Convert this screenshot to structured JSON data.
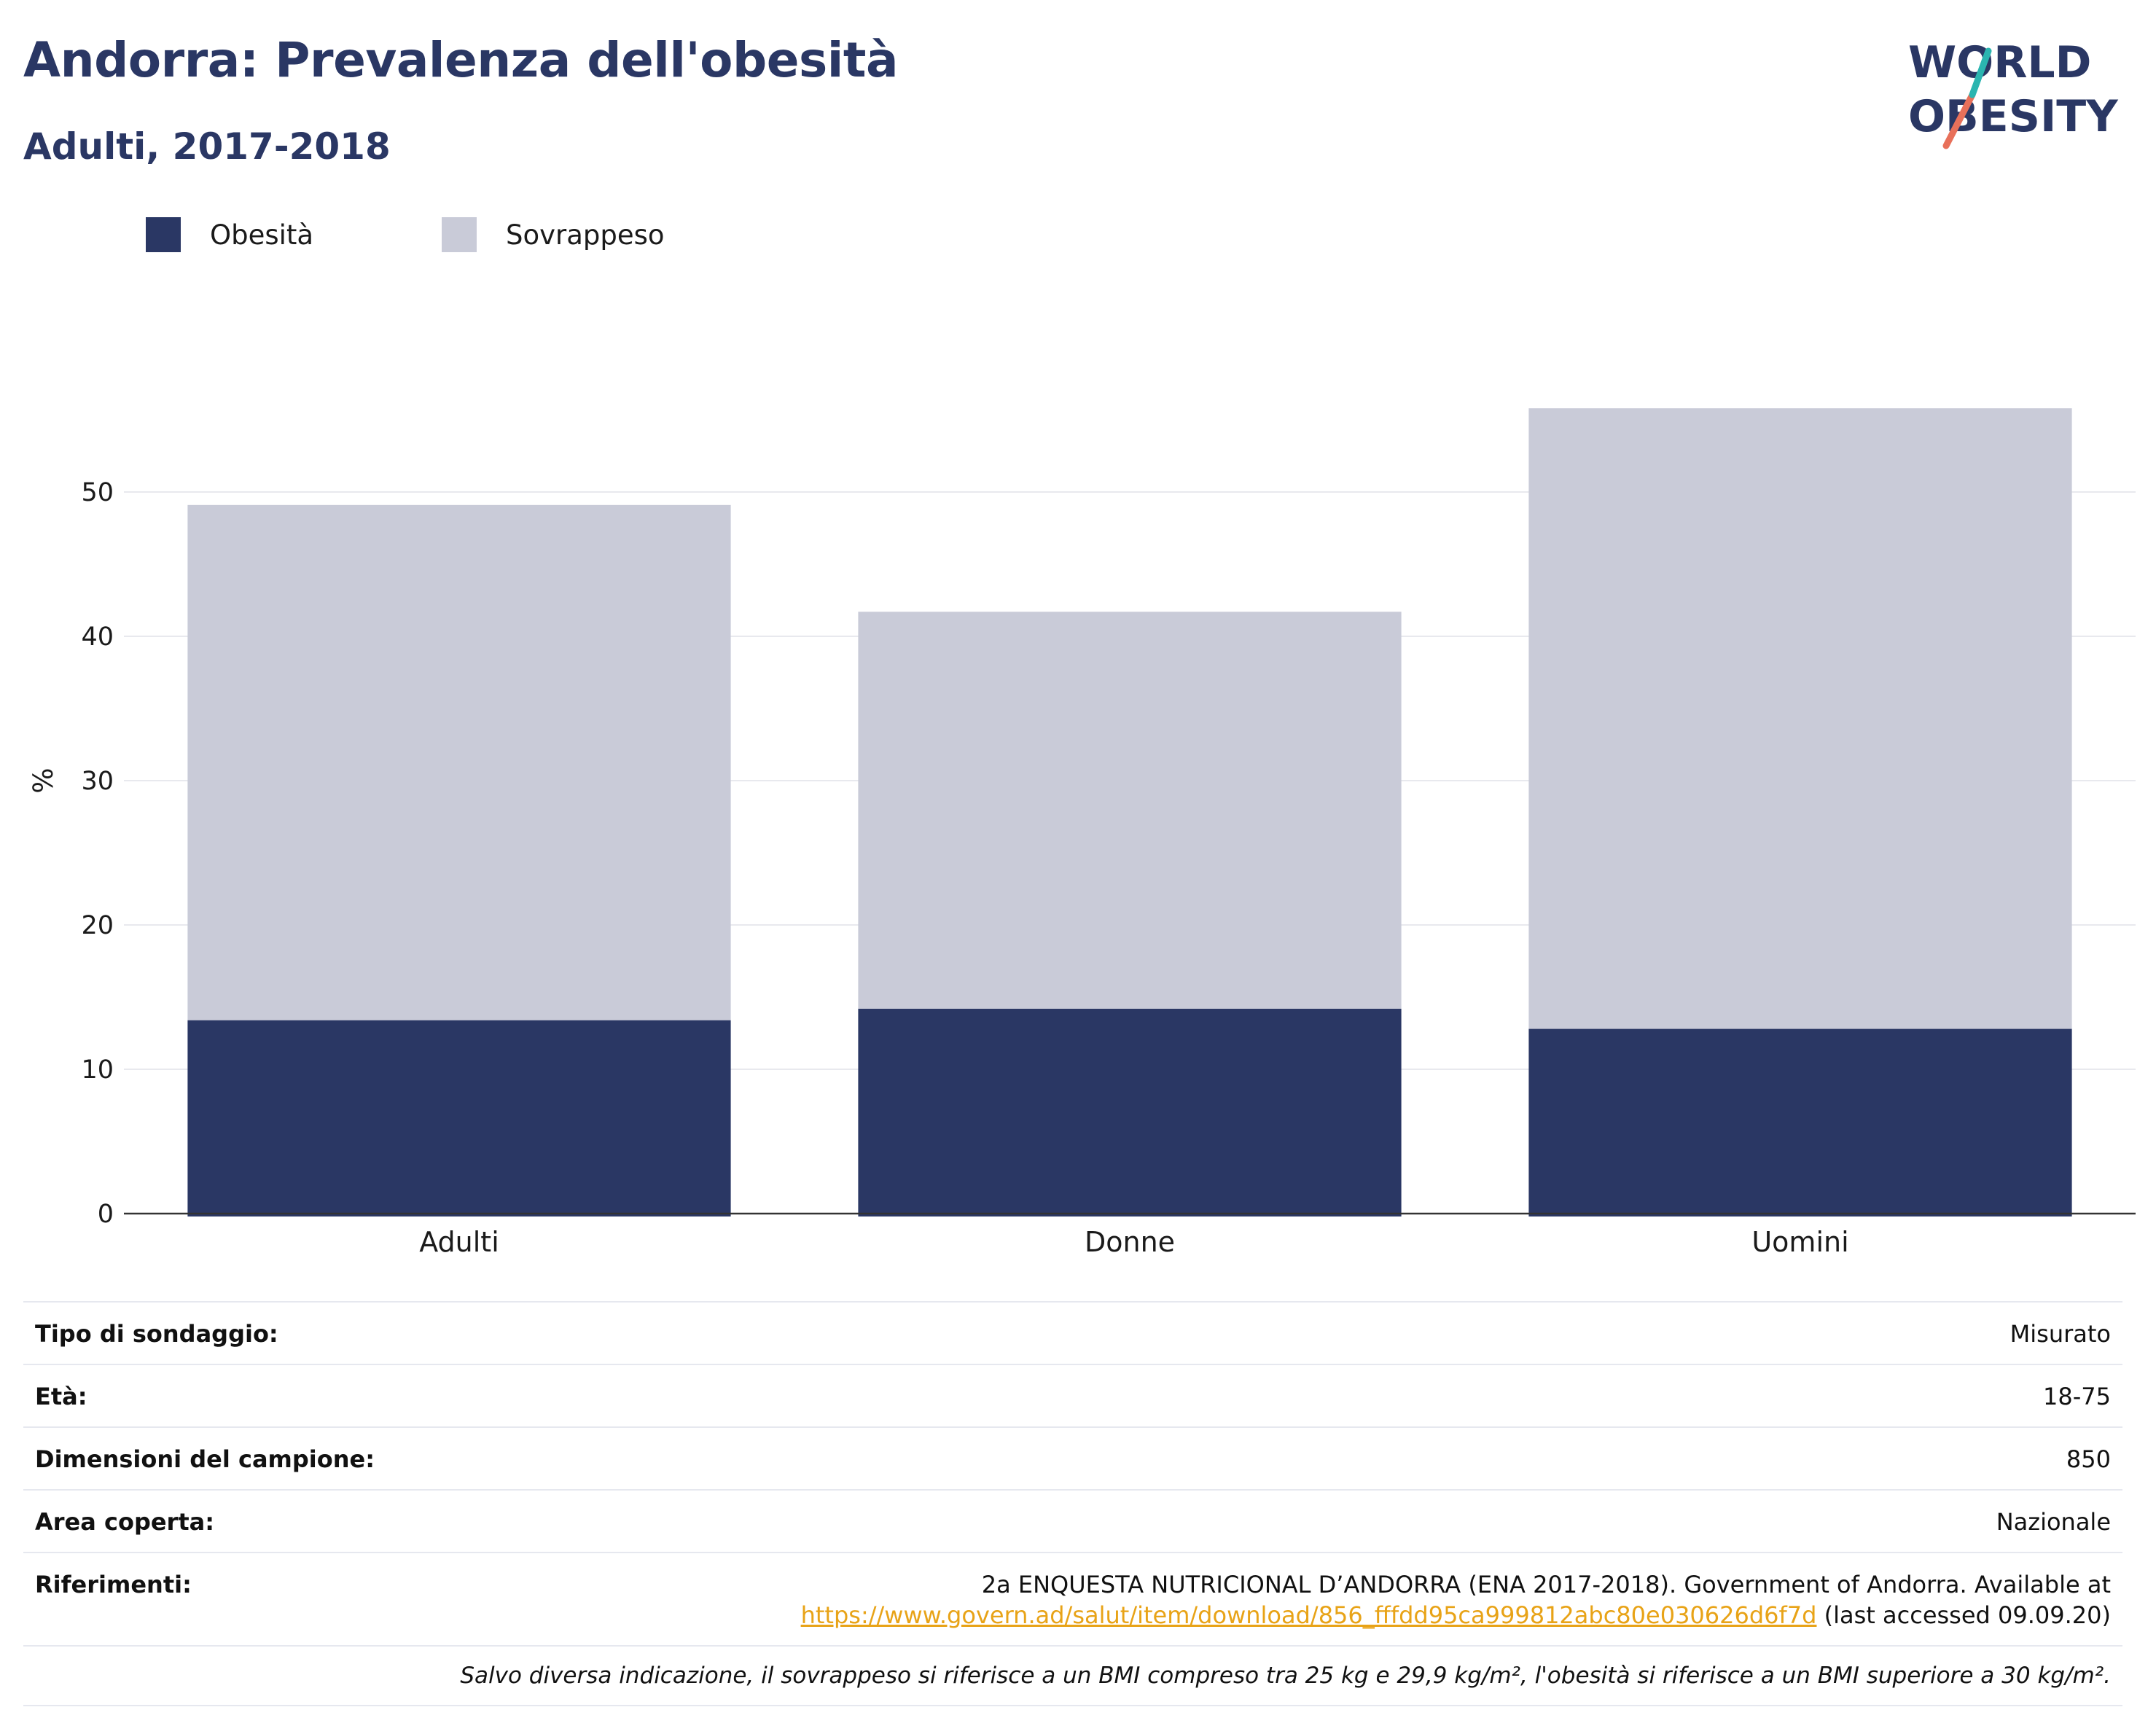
{
  "header": {
    "title": "Andorra: Prevalenza dell'obesità",
    "subtitle": "Adulti, 2017-2018"
  },
  "logo": {
    "line1": "WORLD",
    "line2": "OBESITY"
  },
  "legend": [
    {
      "label": "Obesità",
      "color": "#2a3764"
    },
    {
      "label": "Sovrappeso",
      "color": "#c9cbd8"
    }
  ],
  "chart_data": {
    "type": "bar",
    "stacked": true,
    "categories": [
      "Adulti",
      "Donne",
      "Uomini"
    ],
    "series": [
      {
        "name": "Obesità",
        "values": [
          13.4,
          14.2,
          12.8
        ],
        "color": "#2a3764"
      },
      {
        "name": "Sovrappeso",
        "values": [
          35.7,
          27.5,
          43.0
        ],
        "color": "#c9cbd8"
      }
    ],
    "ylabel": "%",
    "xlabel": "",
    "ylim": [
      0,
      60
    ],
    "yticks": [
      0,
      10,
      20,
      30,
      40,
      50
    ],
    "grid": true,
    "legend_position": "top-left"
  },
  "info": {
    "survey_type": {
      "label": "Tipo di sondaggio:",
      "value": "Misurato"
    },
    "age": {
      "label": "Età:",
      "value": "18-75"
    },
    "sample_size": {
      "label": "Dimensioni del campione:",
      "value": "850"
    },
    "area": {
      "label": "Area coperta:",
      "value": "Nazionale"
    },
    "references": {
      "label": "Riferimenti:",
      "text": "2a ENQUESTA NUTRICIONAL D’ANDORRA (ENA 2017-2018). Government of Andorra. Available at",
      "link": "https://www.govern.ad/salut/item/download/856_fffdd95ca999812abc80e030626d6f7d",
      "suffix": " (last accessed 09.09.20)"
    },
    "note": "Salvo diversa indicazione, il sovrappeso si riferisce a un BMI compreso tra 25 kg e 29,9 kg/m², l'obesità si riferisce a un BMI superiore a 30 kg/m²."
  }
}
